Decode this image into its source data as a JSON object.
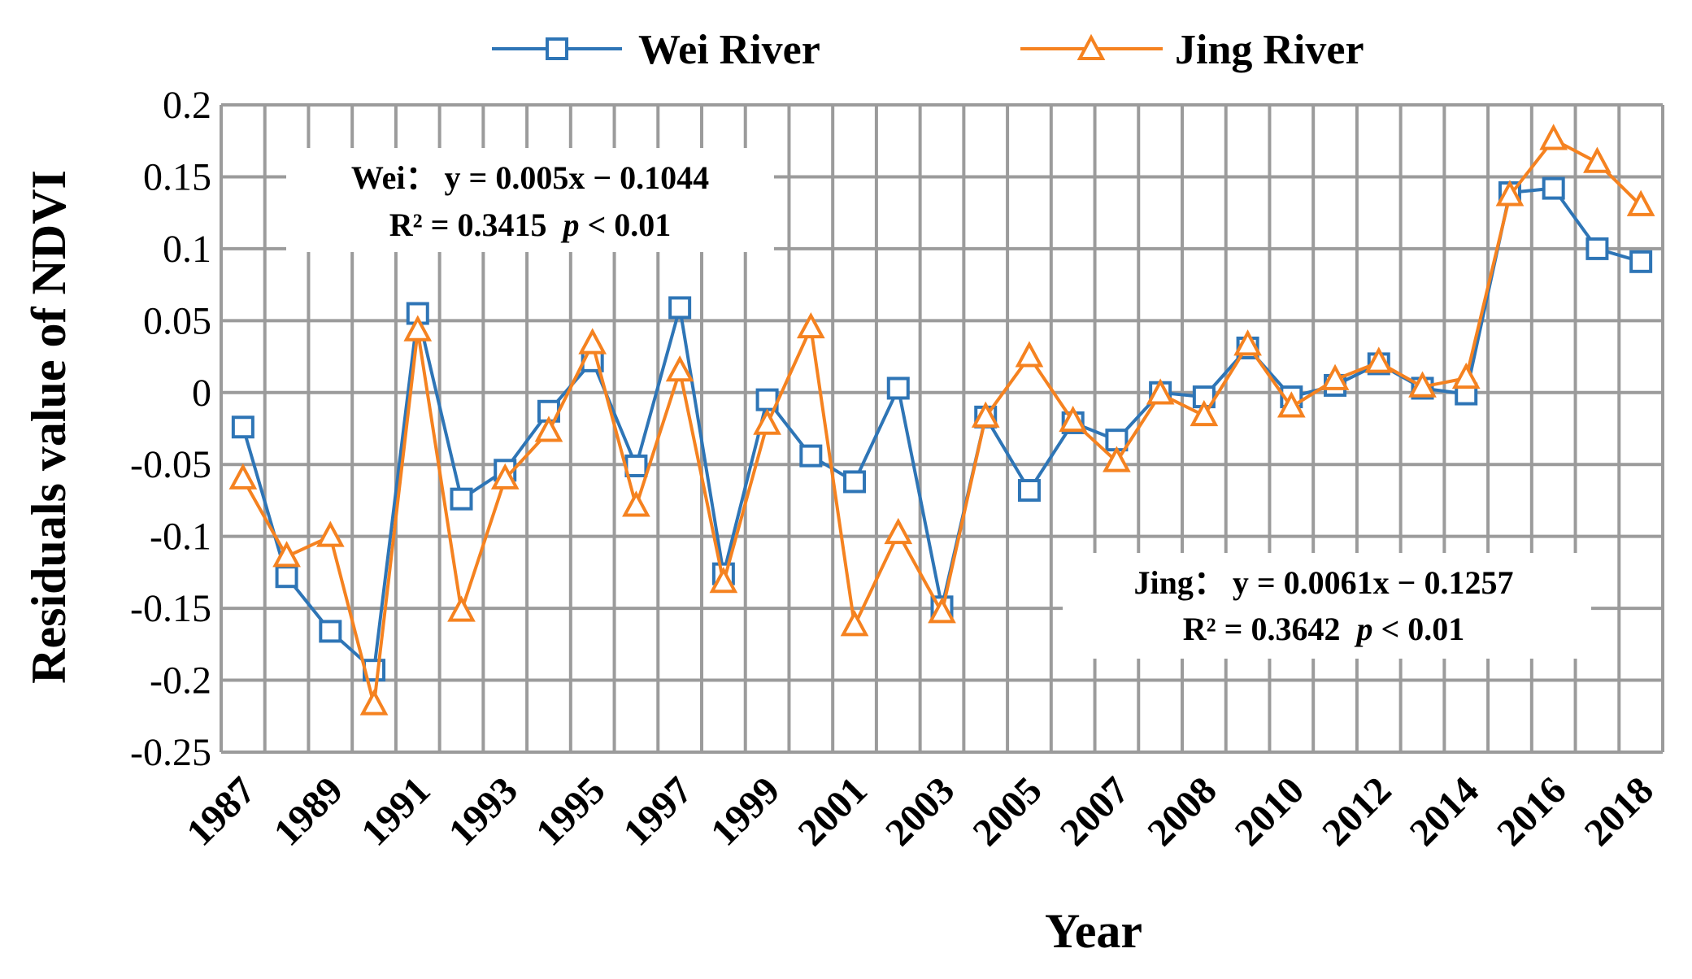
{
  "colors": {
    "wei": "#2E75B6",
    "jing": "#F58220",
    "grid": "#9B9B9B"
  },
  "chart_data": {
    "type": "line",
    "title": "",
    "xlabel": "Year",
    "ylabel": "Residuals value of NDVI",
    "ylim": [
      -0.25,
      0.2
    ],
    "yticks": [
      0.2,
      0.15,
      0.1,
      0.05,
      0,
      -0.05,
      -0.1,
      -0.15,
      -0.2,
      -0.25
    ],
    "ytick_labels": [
      "0.2",
      "0.15",
      "0.1",
      "0.05",
      "0",
      "-0.05",
      "-0.1",
      "-0.15",
      "-0.2",
      "-0.25"
    ],
    "xtick_labels": [
      "1987",
      "1989",
      "1991",
      "1993",
      "1995",
      "1997",
      "1999",
      "2001",
      "2003",
      "2005",
      "2007",
      "2008",
      "2010",
      "2012",
      "2014",
      "2016",
      "2018"
    ],
    "n_points": 33,
    "legend_position": "top",
    "series": [
      {
        "name": "Wei River",
        "marker": "square",
        "values": [
          -0.024,
          -0.128,
          -0.166,
          -0.193,
          0.055,
          -0.074,
          -0.054,
          -0.013,
          0.022,
          -0.051,
          0.059,
          -0.126,
          -0.005,
          -0.044,
          -0.062,
          0.003,
          -0.149,
          -0.017,
          -0.068,
          -0.021,
          -0.033,
          0.0,
          -0.003,
          0.031,
          -0.003,
          0.005,
          0.02,
          0.003,
          -0.001,
          0.139,
          0.142,
          0.1,
          0.091
        ]
      },
      {
        "name": "Jing River",
        "marker": "triangle",
        "values": [
          -0.06,
          -0.114,
          -0.1,
          -0.217,
          0.043,
          -0.152,
          -0.06,
          -0.027,
          0.034,
          -0.079,
          0.015,
          -0.132,
          -0.022,
          0.045,
          -0.162,
          -0.098,
          -0.153,
          -0.017,
          0.025,
          -0.02,
          -0.048,
          -0.001,
          -0.016,
          0.033,
          -0.01,
          0.009,
          0.021,
          0.004,
          0.01,
          0.137,
          0.176,
          0.16,
          0.13
        ]
      }
    ],
    "annotations": [
      {
        "name": "wei-equation",
        "prefix": "Wei：",
        "equation": "y = 0.005x − 0.1044",
        "r2": "R² = 0.3415",
        "p": "p",
        "p_rest": " < 0.01"
      },
      {
        "name": "jing-equation",
        "prefix": "Jing：",
        "equation": "y = 0.0061x − 0.1257",
        "r2": "R² = 0.3642",
        "p": "p",
        "p_rest": " < 0.01"
      }
    ]
  }
}
